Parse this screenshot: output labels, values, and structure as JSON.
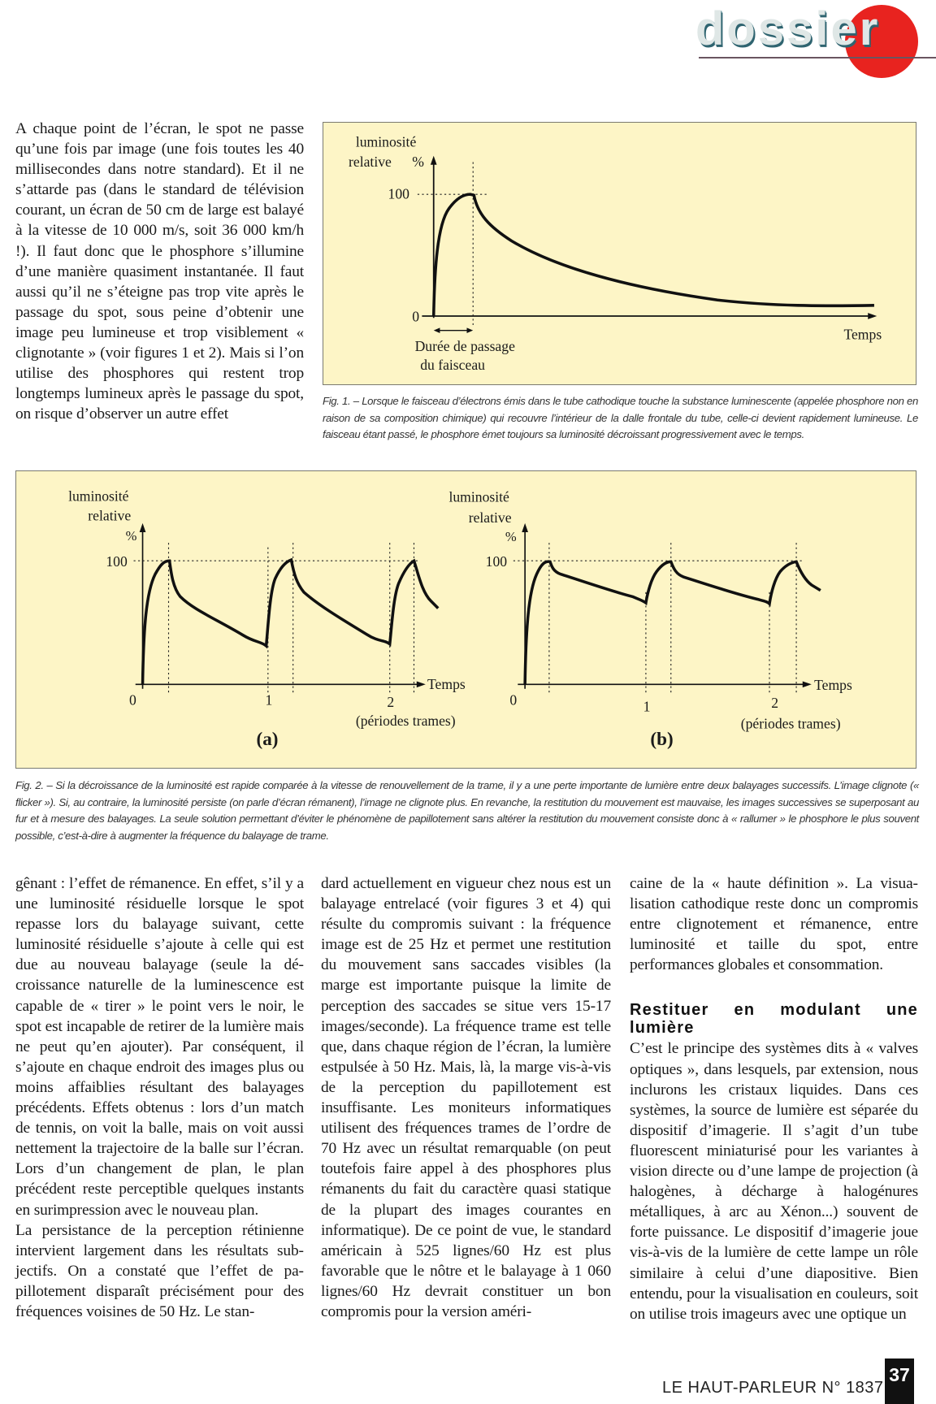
{
  "header": {
    "section": "dossier",
    "accent_color": "#e8231f"
  },
  "intro": {
    "text": "A chaque point de l’écran, le spot ne passe qu’une fois par image (une fois toutes les 40 millisecondes dans notre standard). Et il ne s’attarde pas (dans le standard de té­lévision courant, un écran de 50 cm de large est balayé à la vitesse de 10 000 m/s, soit 36 000 km/h !). Il faut donc que le phosphore s’illumine d’une manière qua­siment instantanée. Il faut aussi qu’il ne s’éteigne pas trop vite après le passage du spot, sous peine d’obtenir une image peu lumineuse et trop visiblement « cligno­tante » (voir figures 1 et 2). Mais si l’on utilise des phosphores qui restent trop longtemps lumineux après le passage du spot, on risque d’observer un autre effet"
  },
  "figure1": {
    "ylabel_1": "luminosité",
    "ylabel_2": "relative",
    "ylabel_unit": "%",
    "tick_100": "100",
    "tick_0": "0",
    "xlabel": "Temps",
    "duration_label_1": "Durée de passage",
    "duration_label_2": "du faisceau",
    "caption": "Fig. 1. – Lorsque le faisceau d’électrons émis dans le tube cathodique touche la substance luminescente (appelée phosphore non en raison de sa composition chimique) qui recouvre l’intérieur de la dalle frontale du tube, celle-ci devient rapidement lu­mineuse. Le faisceau étant passé, le phosphore émet toujours sa luminosité décroissant progressivement avec le temps."
  },
  "figure2": {
    "panel_a": {
      "label": "(a)",
      "ylabel_1": "luminosité",
      "ylabel_2": "relative",
      "ylabel_unit": "%",
      "tick_100": "100",
      "ticks": [
        "0",
        "1",
        "2"
      ],
      "xlabel": "Temps",
      "xunit": "(périodes trames)"
    },
    "panel_b": {
      "label": "(b)",
      "ylabel_1": "luminosité",
      "ylabel_2": "relative",
      "ylabel_unit": "%",
      "tick_100": "100",
      "ticks": [
        "0",
        "1",
        "2"
      ],
      "xlabel": "Temps",
      "xunit": "(périodes trames)"
    },
    "caption": "Fig. 2. – Si la décroissance de la luminosité est rapide comparée à la vitesse de renouvellement de la trame, il y a une perte importante de lumière entre deux balayages successifs. L’image clignote (« flicker »). Si, au contraire, la luminosité persiste (on parle d’écran rémanent), l’image ne clignote plus. En revanche, la restitution du mouvement est mauvaise, les images suc­cessives se superposant au fur et à mesure des balayages. La seule solution permettant d’éviter le phénomène de papillotement sans altérer la restitution du mouvement consiste donc à « rallumer » le phosphore le plus souvent possible, c’est-à-dire à augmenter la fréquence du balayage de trame."
  },
  "columns": {
    "col1_p1": "gênant : l’effet de rémanence. En effet, s’il y a une luminosité résiduelle lorsque le spot repasse lors du balayage suivant, cette luminosité résiduelle s’ajoute à celle qui est due au nouveau balayage (seule la dé­croissance naturelle de la luminescence est capable de « tirer » le point vers le noir, le spot est incapable de retirer de la lumière mais ne peut qu’en ajouter). Par consé­quent, il s’ajoute en chaque endroit des images plus ou moins affaiblies résultant des balayages précédents. Effets obtenus : lors d’un match de tennis, on voit la balle, mais on voit aussi nettement la trajectoire de la balle sur l’écran. Lors d’un change­ment de plan, le plan précédent reste per­ceptible quelques instants en surimpres­sion avec le nouveau plan.",
    "col1_p2": "La persistance de la perception rétinienne intervient largement dans les résultats sub­jectifs. On a constaté que l’effet de pa­pillotement disparaît précisément pour des fréquences voisines de 50 Hz. Le stan-",
    "col2_p1": "dard actuellement en vigueur chez nous est un balayage entrelacé (voir figures 3 et 4) qui résulte du compromis suivant : la fréquence image est de 25 Hz et permet une restitution du mouvement sans sac­cades visibles (la marge est importante puisque la limite de perception des sac­cades se situe vers 15-17 images/seconde). La fréquence trame est telle que, dans chaque région de l’écran, la lumière est­pulsée à 50 Hz. Mais, là, la marge vis-à-vis de la perception du papillotement est insuffisante. Les moniteurs informatiques utilisent des fréquences trames de l’ordre de 70 Hz avec un résultat remarquable (on peut toutefois faire appel à des phosphores plus rémanents du fait du caractère quasi statique de la plupart des images courantes en informatique). De ce point de vue, le standard américain à 525 lignes/60 Hz est plus favorable que le nôtre et le balayage à 1 060 lignes/60 Hz devrait constituer un bon compromis pour la version améri-",
    "col3_p1": "caine de la « haute définition ». La visua­lisation cathodique reste donc un com­promis entre clignotement et rémanence, entre luminosité et taille du spot, entre performances globales et consommation.",
    "col3_heading": "Restituer en modulant une lumière",
    "col3_p2": "C’est le principe des systèmes dits à « val­ves optiques », dans lesquels, par exten­sion, nous inclurons les cristaux liquides. Dans ces systèmes, la source de lumière est séparée du dispositif d’imagerie. Il s’agit d’un tube fluorescent miniaturisé pour les variantes à vision directe ou d’une lampe de projection (à halogènes, à décharge à halogénures métalliques, à arc au Xé­non...) souvent de forte puissance. Le dis­positif d’imagerie joue vis-à-vis de la lu­mière de cette lampe un rôle similaire à celui d’une diapositive. Bien entendu, pour la visualisation en couleurs, soit on utilise trois imageurs avec une optique un"
  },
  "footer": {
    "publication": "LE HAUT-PARLEUR N° 1837",
    "page": "37"
  }
}
